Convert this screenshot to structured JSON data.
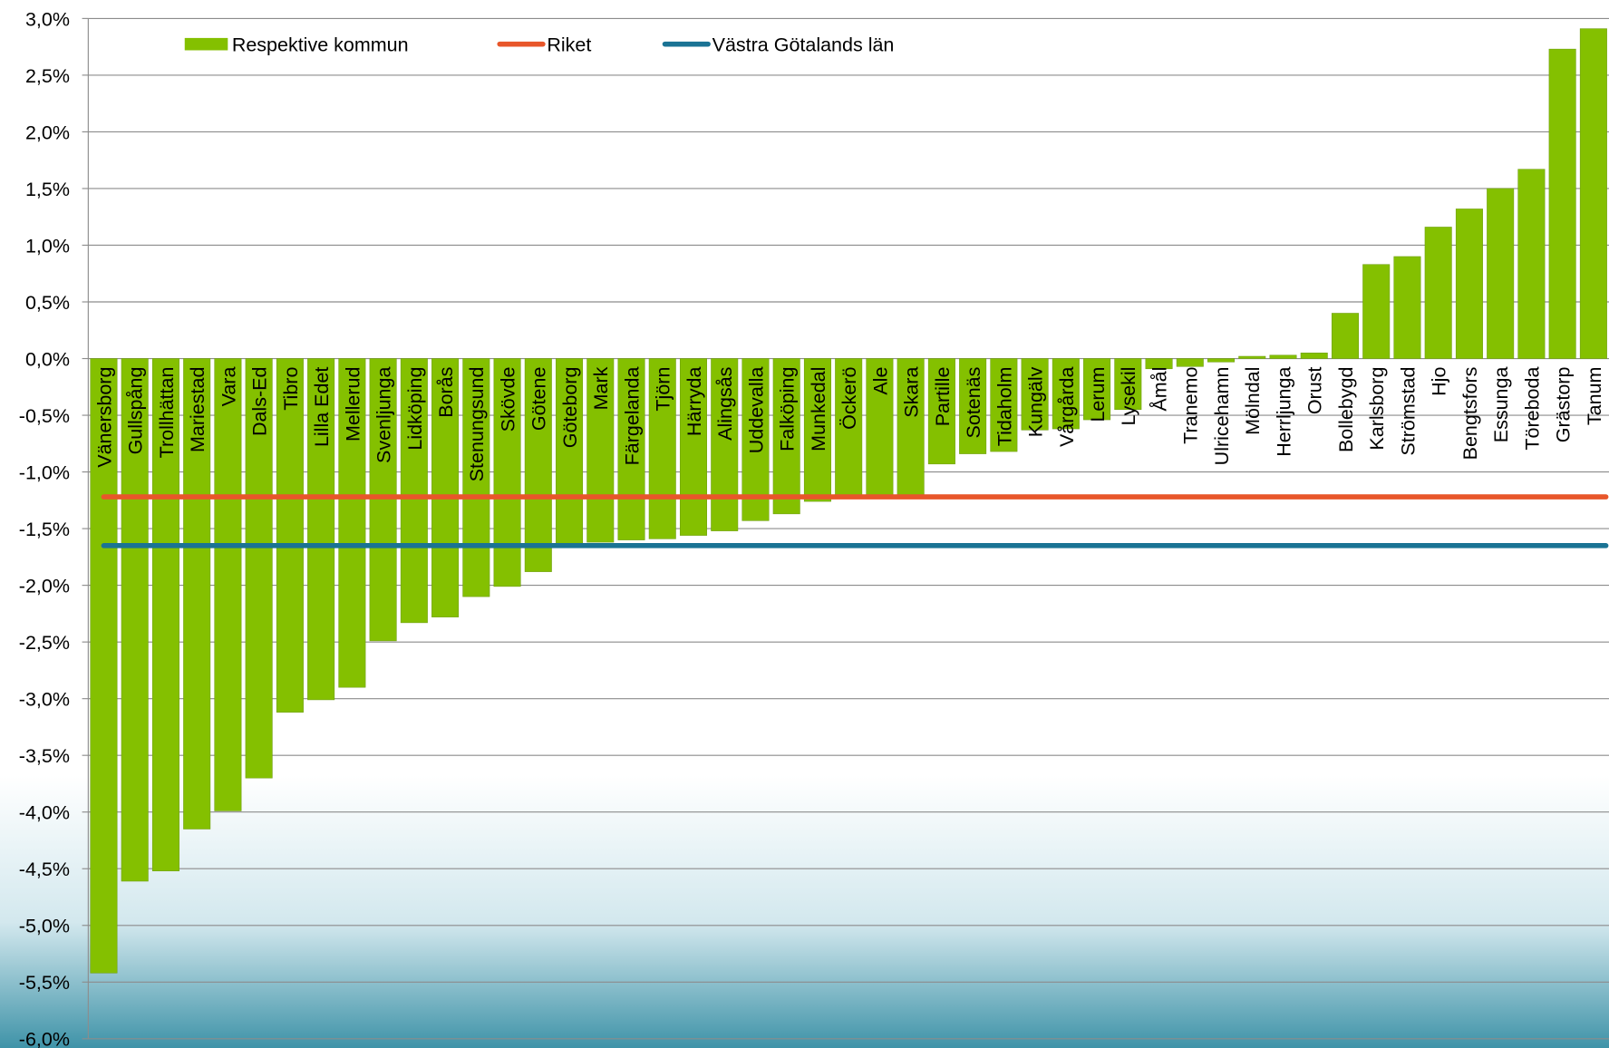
{
  "chart_data": {
    "type": "bar",
    "categories": [
      "Vänersborg",
      "Gullspång",
      "Trollhättan",
      "Mariestad",
      "Vara",
      "Dals-Ed",
      "Tibro",
      "Lilla Edet",
      "Mellerud",
      "Svenljunga",
      "Lidköping",
      "Borås",
      "Stenungsund",
      "Skövde",
      "Götene",
      "Göteborg",
      "Mark",
      "Färgelanda",
      "Tjörn",
      "Härryda",
      "Alingsås",
      "Uddevalla",
      "Falköping",
      "Munkedal",
      "Öckerö",
      "Ale",
      "Skara",
      "Partille",
      "Sotenäs",
      "Tidaholm",
      "Kungälv",
      "Vårgårda",
      "Lerum",
      "Lysekil",
      "Åmål",
      "Tranemo",
      "Ulricehamn",
      "Mölndal",
      "Herrljunga",
      "Orust",
      "Bollebygd",
      "Karlsborg",
      "Strömstad",
      "Hjo",
      "Bengtsfors",
      "Essunga",
      "Töreboda",
      "Grästorp",
      "Tanum"
    ],
    "series": [
      {
        "name": "Respektive kommun",
        "color": "#84c000",
        "values": [
          -5.42,
          -4.61,
          -4.52,
          -4.15,
          -3.99,
          -3.7,
          -3.12,
          -3.01,
          -2.9,
          -2.49,
          -2.33,
          -2.28,
          -2.1,
          -2.01,
          -1.88,
          -1.63,
          -1.62,
          -1.6,
          -1.59,
          -1.56,
          -1.52,
          -1.43,
          -1.37,
          -1.26,
          -1.23,
          -1.21,
          -1.21,
          -0.93,
          -0.84,
          -0.82,
          -0.63,
          -0.62,
          -0.54,
          -0.45,
          -0.09,
          -0.07,
          -0.03,
          0.02,
          0.03,
          0.05,
          0.4,
          0.83,
          0.9,
          1.16,
          1.32,
          1.5,
          1.67,
          2.73,
          2.91
        ]
      },
      {
        "name": "Riket",
        "color": "#e8562a",
        "type": "line",
        "value": -1.22
      },
      {
        "name": "Västra Götalands län",
        "color": "#1a7394",
        "type": "line",
        "value": -1.65
      }
    ],
    "ylim": [
      -6,
      3
    ],
    "yticks": [
      {
        "value": 3,
        "label": "3,0%"
      },
      {
        "value": 2.5,
        "label": "2,5%"
      },
      {
        "value": 2,
        "label": "2,0%"
      },
      {
        "value": 1.5,
        "label": "1,5%"
      },
      {
        "value": 1,
        "label": "1,0%"
      },
      {
        "value": 0.5,
        "label": "0,5%"
      },
      {
        "value": 0,
        "label": "0,0%"
      },
      {
        "value": -0.5,
        "label": "-0,5%"
      },
      {
        "value": -1,
        "label": "-1,0%"
      },
      {
        "value": -1.5,
        "label": "-1,5%"
      },
      {
        "value": -2,
        "label": "-2,0%"
      },
      {
        "value": -2.5,
        "label": "-2,5%"
      },
      {
        "value": -3,
        "label": "-3,0%"
      },
      {
        "value": -3.5,
        "label": "-3,5%"
      },
      {
        "value": -4,
        "label": "-4,0%"
      },
      {
        "value": -4.5,
        "label": "-4,5%"
      },
      {
        "value": -5,
        "label": "-5,0%"
      },
      {
        "value": -5.5,
        "label": "-5,5%"
      },
      {
        "value": -6,
        "label": "-6,0%"
      }
    ],
    "grid": true,
    "legend": "top"
  }
}
